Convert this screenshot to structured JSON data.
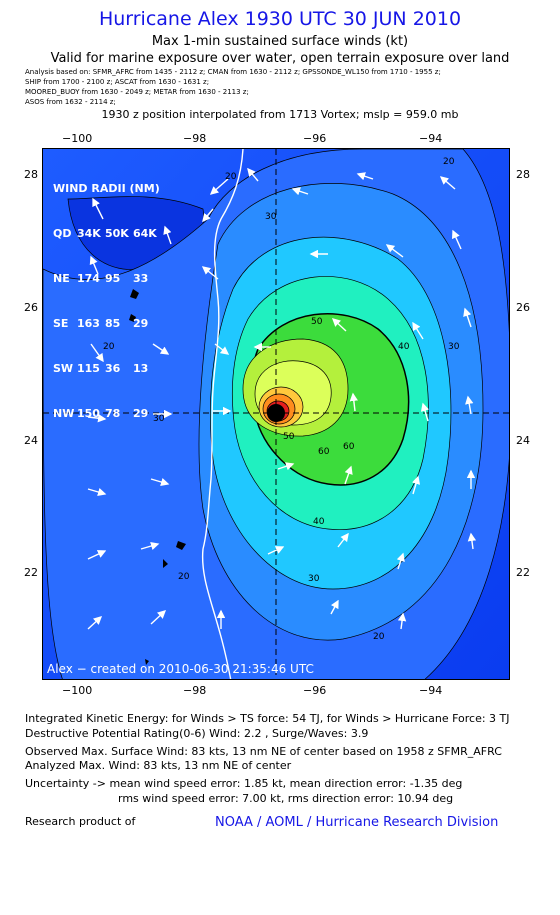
{
  "header": {
    "title": "Hurricane Alex 1930 UTC 30 JUN 2010",
    "subtitle": "Max 1-min sustained surface winds (kt)",
    "valid": "Valid for marine exposure over water, open terrain exposure over land",
    "analysis_lines": [
      "Analysis based on:  SFMR_AFRC from 1435 - 2112 z;   CMAN from 1630 - 2112 z;   GPSSONDE_WL150 from 1710 - 1955 z;",
      "SHIP from 1700 - 2100 z;   ASCAT from 1630 - 1631 z;",
      "MOORED_BUOY from 1630 - 2049 z;   METAR from 1630 - 2113 z;",
      "ASOS from 1632 - 2114 z;"
    ],
    "interp": "1930 z position interpolated from 1713 Vortex; mslp = 959.0 mb"
  },
  "map": {
    "lon_ticks": [
      "−100",
      "−98",
      "−96",
      "−94"
    ],
    "lat_ticks": [
      "28",
      "26",
      "24",
      "22"
    ],
    "contour_labels": [
      "20",
      "30",
      "40",
      "50",
      "60",
      "20",
      "30",
      "40",
      "50",
      "60",
      "30",
      "20",
      "20",
      "30",
      "20"
    ],
    "wind_radii": {
      "title": "WIND RADII (NM)",
      "header": [
        "QD",
        "34K",
        "50K",
        "64K"
      ],
      "rows": [
        [
          "NE",
          "174",
          "95",
          "33"
        ],
        [
          "SE",
          "163",
          "85",
          "29"
        ],
        [
          "SW",
          "115",
          "36",
          "13"
        ],
        [
          "NW",
          "150",
          "78",
          "29"
        ]
      ]
    },
    "created": "Alex − created on 2010-06-30 21:35:46 UTC",
    "colors": {
      "ocean_dark": "#0a3cf0",
      "ocean_mid": "#2a6cff",
      "band_30": "#2a8cff",
      "band_40": "#20c8ff",
      "band_50": "#20f0c0",
      "band_60": "#3cdc3c",
      "inner_yellow": "#dcff5a",
      "eye_orange": "#ff8c1e",
      "eye_red": "#e61e1e",
      "eye_dark": "#b40000"
    }
  },
  "info": {
    "ike": "Integrated Kinetic Energy:  for Winds > TS force: 54 TJ,  for Winds > Hurricane Force: 3 TJ",
    "dpr": "Destructive Potential Rating(0-6)   Wind: 2.2 , Surge/Waves: 3.9",
    "obs_max": "Observed Max. Surface Wind: 83 kts, 13 nm NE of center based on 1958 z SFMR_AFRC",
    "ana_max": "Analyzed Max. Wind: 83 kts, 13 nm NE of center",
    "unc1": "Uncertainty -> mean wind speed error: 1.85 kt,   mean direction error:  -1.35 deg",
    "unc2": "rms wind speed error: 7.00 kt,   rms direction error: 10.94 deg",
    "research": "Research product of",
    "noaa": "NOAA / AOML / Hurricane Research Division"
  }
}
